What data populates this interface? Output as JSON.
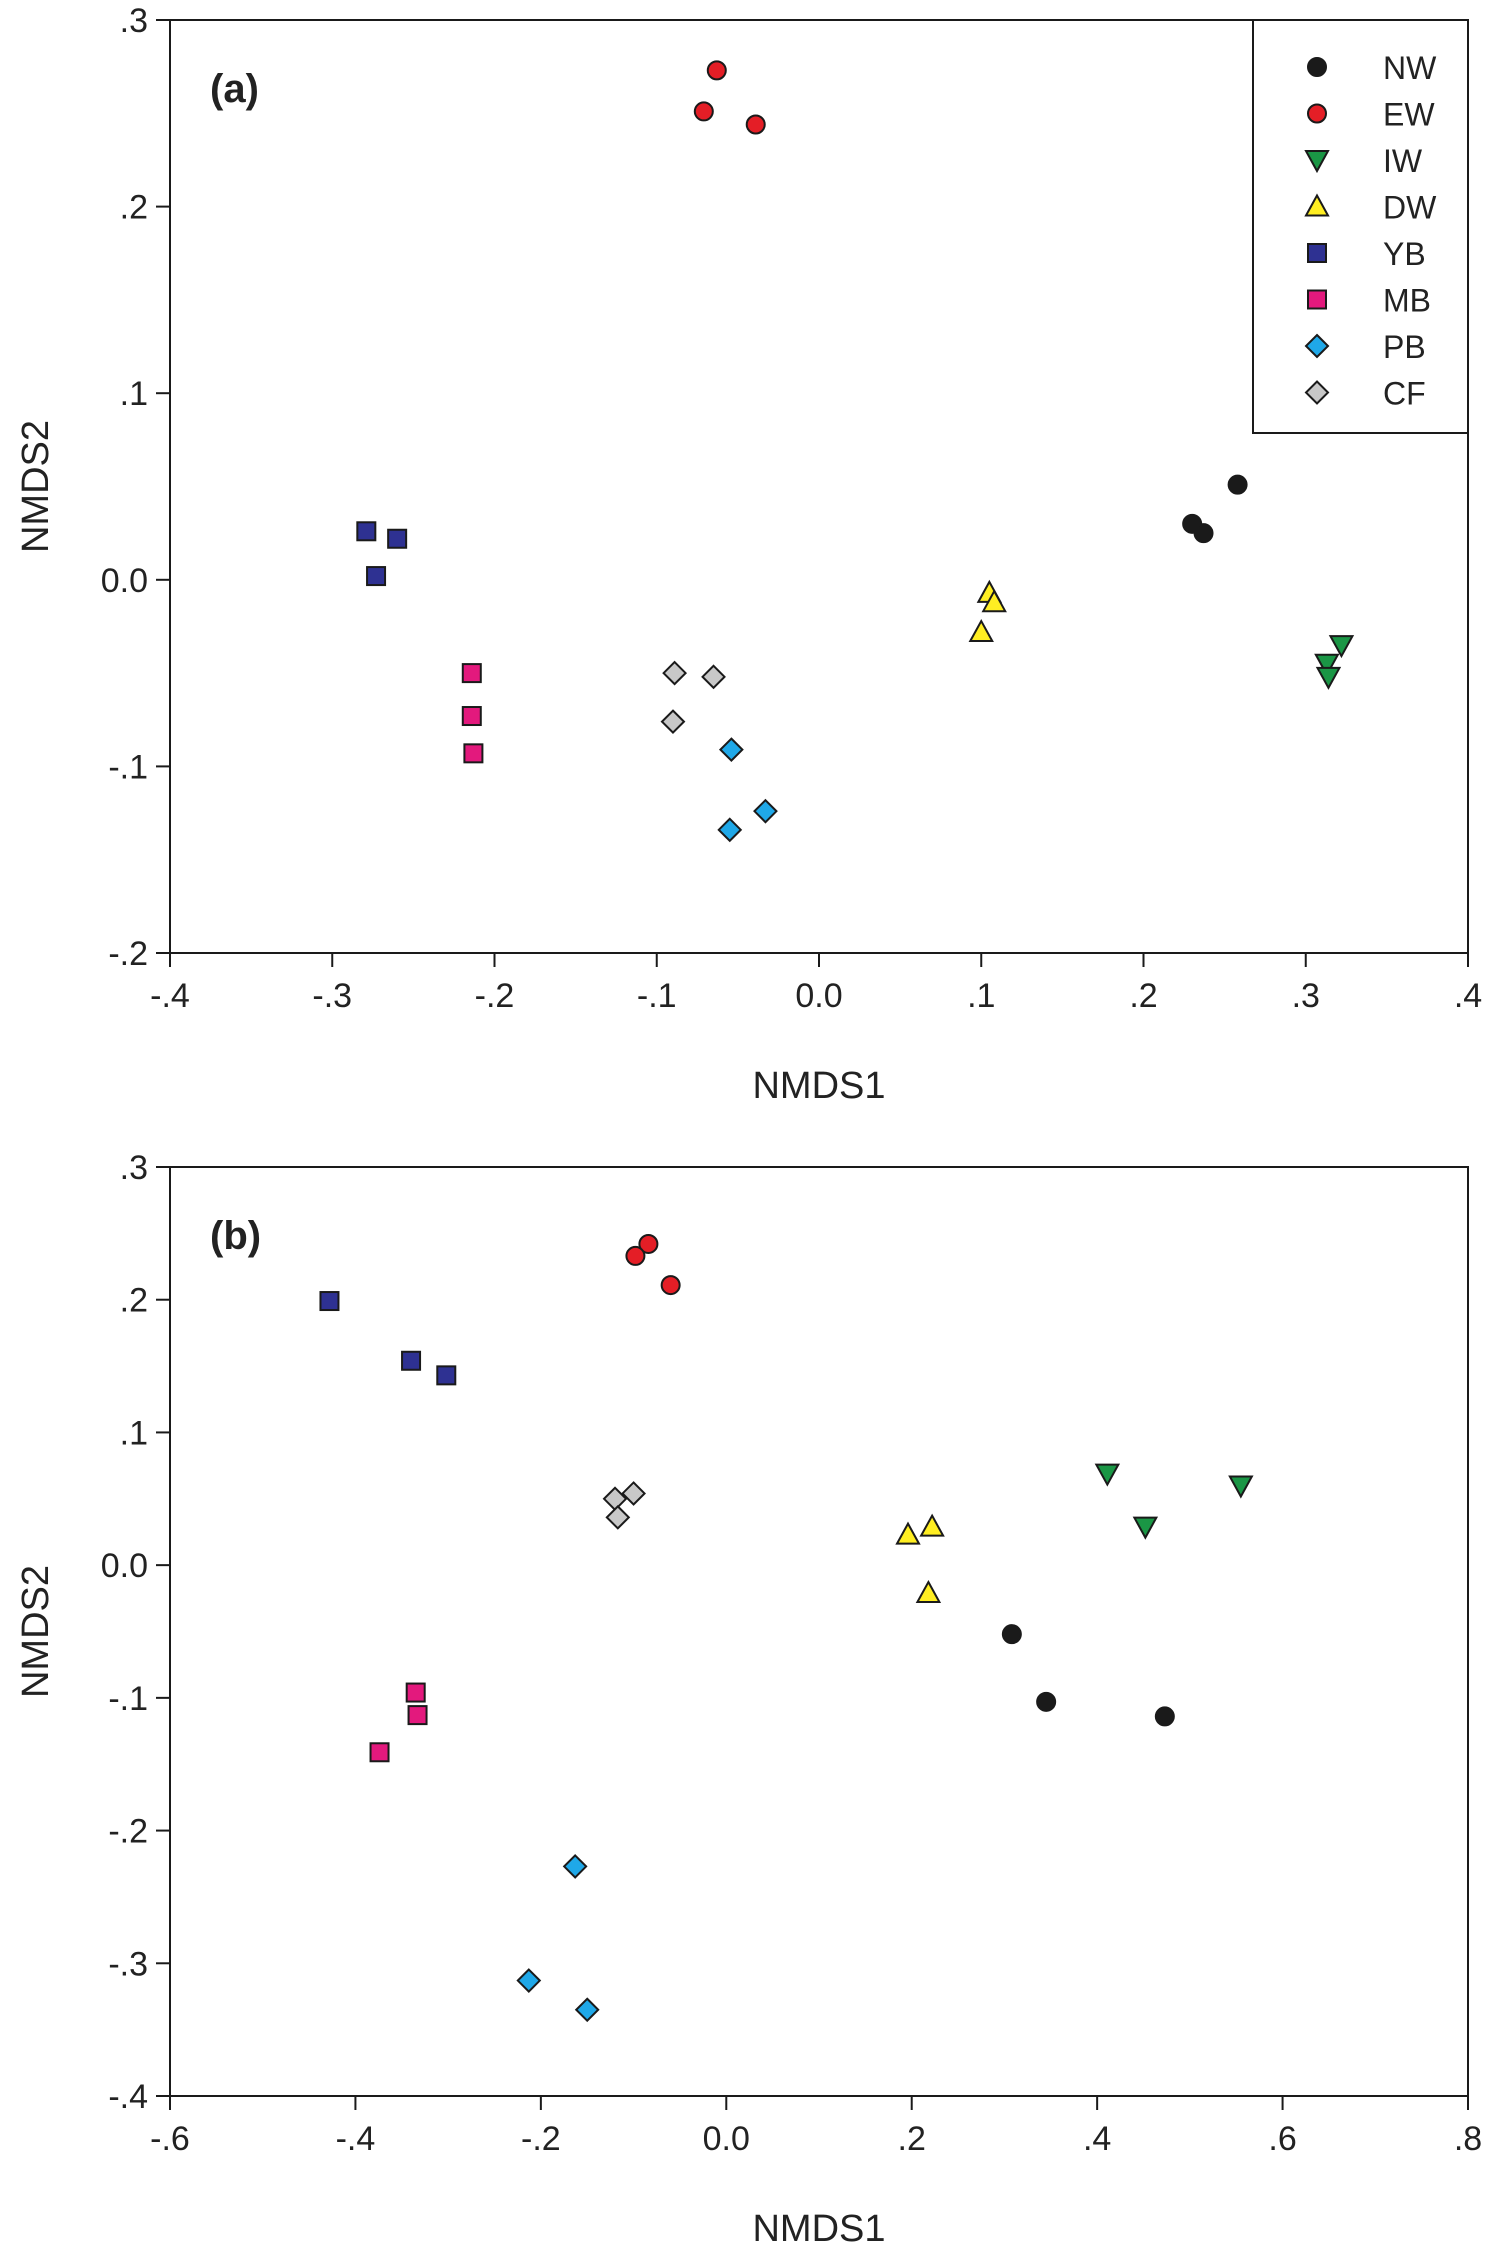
{
  "chart_data": [
    {
      "type": "scatter",
      "panel_label": "(a)",
      "xlabel": "NMDS1",
      "ylabel": "NMDS2",
      "xlim": [
        -0.4,
        0.4
      ],
      "ylim": [
        -0.2,
        0.3
      ],
      "xticks": [
        {
          "v": -0.4,
          "label": "-.4"
        },
        {
          "v": -0.3,
          "label": "-.3"
        },
        {
          "v": -0.2,
          "label": "-.2"
        },
        {
          "v": -0.1,
          "label": "-.1"
        },
        {
          "v": 0.0,
          "label": "0.0"
        },
        {
          "v": 0.1,
          "label": ".1"
        },
        {
          "v": 0.2,
          "label": ".2"
        },
        {
          "v": 0.3,
          "label": ".3"
        },
        {
          "v": 0.4,
          "label": ".4"
        }
      ],
      "yticks": [
        {
          "v": -0.2,
          "label": "-.2"
        },
        {
          "v": -0.1,
          "label": "-.1"
        },
        {
          "v": 0.0,
          "label": "0.0"
        },
        {
          "v": 0.1,
          "label": ".1"
        },
        {
          "v": 0.2,
          "label": ".2"
        },
        {
          "v": 0.3,
          "label": ".3"
        }
      ],
      "grid": false,
      "legend": "top-right",
      "series": [
        {
          "name": "NW",
          "marker": "circle",
          "color": "#1a1a1a",
          "points": [
            [
              0.23,
              0.03
            ],
            [
              0.237,
              0.025
            ],
            [
              0.258,
              0.051
            ]
          ]
        },
        {
          "name": "EW",
          "marker": "circle",
          "color": "#e41e26",
          "points": [
            [
              -0.063,
              0.273
            ],
            [
              -0.071,
              0.251
            ],
            [
              -0.039,
              0.244
            ]
          ]
        },
        {
          "name": "IW",
          "marker": "triangle-down",
          "color": "#1a9645",
          "points": [
            [
              0.322,
              -0.035
            ],
            [
              0.313,
              -0.045
            ],
            [
              0.314,
              -0.052
            ]
          ]
        },
        {
          "name": "DW",
          "marker": "triangle-up",
          "color": "#ffee22",
          "points": [
            [
              0.105,
              -0.007
            ],
            [
              0.108,
              -0.012
            ],
            [
              0.1,
              -0.028
            ]
          ]
        },
        {
          "name": "YB",
          "marker": "square",
          "color": "#2e3192",
          "points": [
            [
              -0.279,
              0.026
            ],
            [
              -0.26,
              0.022
            ],
            [
              -0.273,
              0.002
            ]
          ]
        },
        {
          "name": "MB",
          "marker": "square",
          "color": "#e3197d",
          "points": [
            [
              -0.214,
              -0.05
            ],
            [
              -0.214,
              -0.073
            ],
            [
              -0.213,
              -0.093
            ]
          ]
        },
        {
          "name": "PB",
          "marker": "diamond",
          "color": "#1fa8e8",
          "points": [
            [
              -0.054,
              -0.091
            ],
            [
              -0.033,
              -0.124
            ],
            [
              -0.055,
              -0.134
            ]
          ]
        },
        {
          "name": "CF",
          "marker": "diamond",
          "color": "#c8c8c8",
          "points": [
            [
              -0.089,
              -0.05
            ],
            [
              -0.065,
              -0.052
            ],
            [
              -0.09,
              -0.076
            ]
          ]
        }
      ]
    },
    {
      "type": "scatter",
      "panel_label": "(b)",
      "xlabel": "NMDS1",
      "ylabel": "NMDS2",
      "xlim": [
        -0.6,
        0.8
      ],
      "ylim": [
        -0.4,
        0.3
      ],
      "xticks": [
        {
          "v": -0.6,
          "label": "-.6"
        },
        {
          "v": -0.4,
          "label": "-.4"
        },
        {
          "v": -0.2,
          "label": "-.2"
        },
        {
          "v": 0.0,
          "label": "0.0"
        },
        {
          "v": 0.2,
          "label": ".2"
        },
        {
          "v": 0.4,
          "label": ".4"
        },
        {
          "v": 0.6,
          "label": ".6"
        },
        {
          "v": 0.8,
          "label": ".8"
        }
      ],
      "yticks": [
        {
          "v": -0.4,
          "label": "-.4"
        },
        {
          "v": -0.3,
          "label": "-.3"
        },
        {
          "v": -0.2,
          "label": "-.2"
        },
        {
          "v": -0.1,
          "label": "-.1"
        },
        {
          "v": 0.0,
          "label": "0.0"
        },
        {
          "v": 0.1,
          "label": ".1"
        },
        {
          "v": 0.2,
          "label": ".2"
        },
        {
          "v": 0.3,
          "label": ".3"
        }
      ],
      "grid": false,
      "series": [
        {
          "name": "NW",
          "marker": "circle",
          "color": "#1a1a1a",
          "points": [
            [
              0.308,
              -0.052
            ],
            [
              0.345,
              -0.103
            ],
            [
              0.473,
              -0.114
            ]
          ]
        },
        {
          "name": "EW",
          "marker": "circle",
          "color": "#e41e26",
          "points": [
            [
              -0.084,
              0.242
            ],
            [
              -0.098,
              0.233
            ],
            [
              -0.06,
              0.211
            ]
          ]
        },
        {
          "name": "IW",
          "marker": "triangle-down",
          "color": "#1a9645",
          "points": [
            [
              0.411,
              0.069
            ],
            [
              0.555,
              0.06
            ],
            [
              0.452,
              0.029
            ]
          ]
        },
        {
          "name": "DW",
          "marker": "triangle-up",
          "color": "#ffee22",
          "points": [
            [
              0.196,
              0.023
            ],
            [
              0.222,
              0.029
            ],
            [
              0.218,
              -0.021
            ]
          ]
        },
        {
          "name": "YB",
          "marker": "square",
          "color": "#2e3192",
          "points": [
            [
              -0.428,
              0.199
            ],
            [
              -0.34,
              0.154
            ],
            [
              -0.302,
              0.143
            ]
          ]
        },
        {
          "name": "MB",
          "marker": "square",
          "color": "#e3197d",
          "points": [
            [
              -0.335,
              -0.096
            ],
            [
              -0.333,
              -0.113
            ],
            [
              -0.374,
              -0.141
            ]
          ]
        },
        {
          "name": "PB",
          "marker": "diamond",
          "color": "#1fa8e8",
          "points": [
            [
              -0.163,
              -0.227
            ],
            [
              -0.213,
              -0.313
            ],
            [
              -0.15,
              -0.335
            ]
          ]
        },
        {
          "name": "CF",
          "marker": "diamond",
          "color": "#c8c8c8",
          "points": [
            [
              -0.12,
              0.05
            ],
            [
              -0.1,
              0.054
            ],
            [
              -0.117,
              0.036
            ]
          ]
        }
      ]
    }
  ]
}
